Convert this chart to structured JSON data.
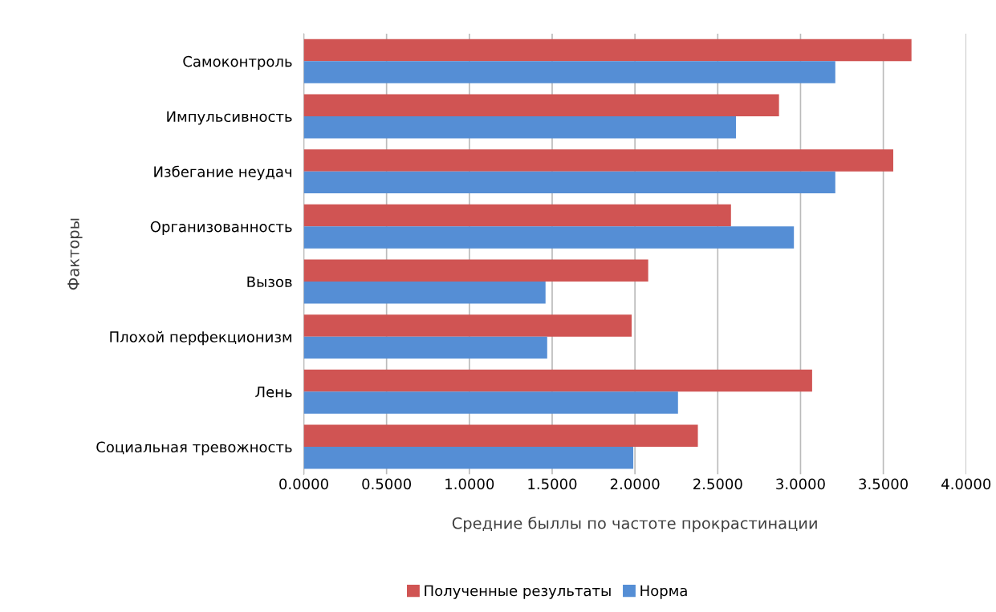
{
  "chart_data": {
    "type": "bar",
    "orientation": "horizontal",
    "xlabel": "Средние быллы по частоте прокрастинации",
    "ylabel": "Факторы",
    "categories": [
      "Самоконтроль",
      "Импульсивность",
      "Избегание неудач",
      "Организованность",
      "Вызов",
      "Плохой перфекционизм",
      "Лень",
      "Социальная тревожность"
    ],
    "series": [
      {
        "name": "Полученные результаты",
        "color": "#d05453",
        "values": [
          3.67,
          2.87,
          3.56,
          2.58,
          2.08,
          1.98,
          3.07,
          2.38
        ]
      },
      {
        "name": "Норма",
        "color": "#558ed5",
        "values": [
          3.21,
          2.61,
          3.21,
          2.96,
          1.46,
          1.47,
          2.26,
          1.99
        ]
      }
    ],
    "xlim": [
      0,
      4
    ],
    "xticks": [
      {
        "value": 0,
        "label": "0.0000"
      },
      {
        "value": 0.5,
        "label": "0.5000"
      },
      {
        "value": 1,
        "label": "1.0000"
      },
      {
        "value": 1.5,
        "label": "1.5000"
      },
      {
        "value": 2,
        "label": "2.0000"
      },
      {
        "value": 2.5,
        "label": "2.5000"
      },
      {
        "value": 3,
        "label": "3.0000"
      },
      {
        "value": 3.5,
        "label": "3.5000"
      },
      {
        "value": 4,
        "label": "4.0000"
      }
    ],
    "grid": "x",
    "legend": "bottom"
  }
}
